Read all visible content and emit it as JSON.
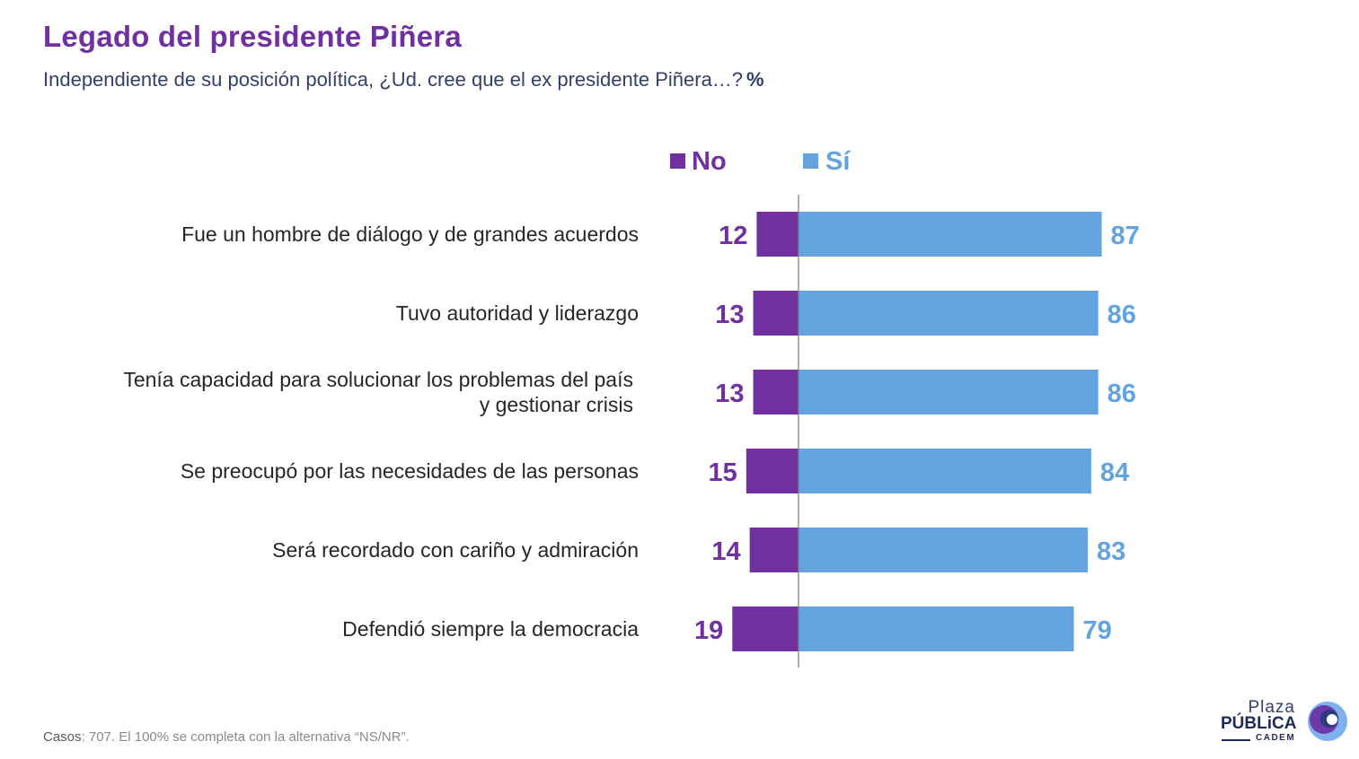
{
  "title": "Legado del presidente Piñera",
  "subtitle": "Independiente de su posición política, ¿Ud. cree que el ex presidente Piñera…?",
  "subtitle_unit": "%",
  "footnote": {
    "casos_label": "Casos",
    "text": ": 707. El 100% se completa con la alternativa “NS/NR”."
  },
  "logo": {
    "line1": "Plaza",
    "line2": "PÚBLiCA",
    "line3": "CADEM"
  },
  "colors": {
    "no": "#7030a0",
    "si": "#63a3e0",
    "title": "#7030a0",
    "axis": "#7f7f7f"
  },
  "chart_data": {
    "type": "bar",
    "orientation": "horizontal-diverging",
    "title": "Legado del presidente Piñera",
    "unit": "%",
    "legend": [
      "No",
      "Sí"
    ],
    "categories": [
      [
        "Fue un hombre de diálogo y de grandes acuerdos"
      ],
      [
        "Tuvo autoridad y liderazgo"
      ],
      [
        "Tenía capacidad para solucionar los problemas del país",
        "y gestionar crisis"
      ],
      [
        "Se preocupó por las necesidades de las personas"
      ],
      [
        "Será recordado con cariño y admiración"
      ],
      [
        "Defendió siempre la democracia"
      ]
    ],
    "series": [
      {
        "name": "No",
        "values": [
          12,
          13,
          13,
          15,
          14,
          19
        ]
      },
      {
        "name": "Sí",
        "values": [
          87,
          86,
          86,
          84,
          83,
          79
        ]
      }
    ]
  }
}
